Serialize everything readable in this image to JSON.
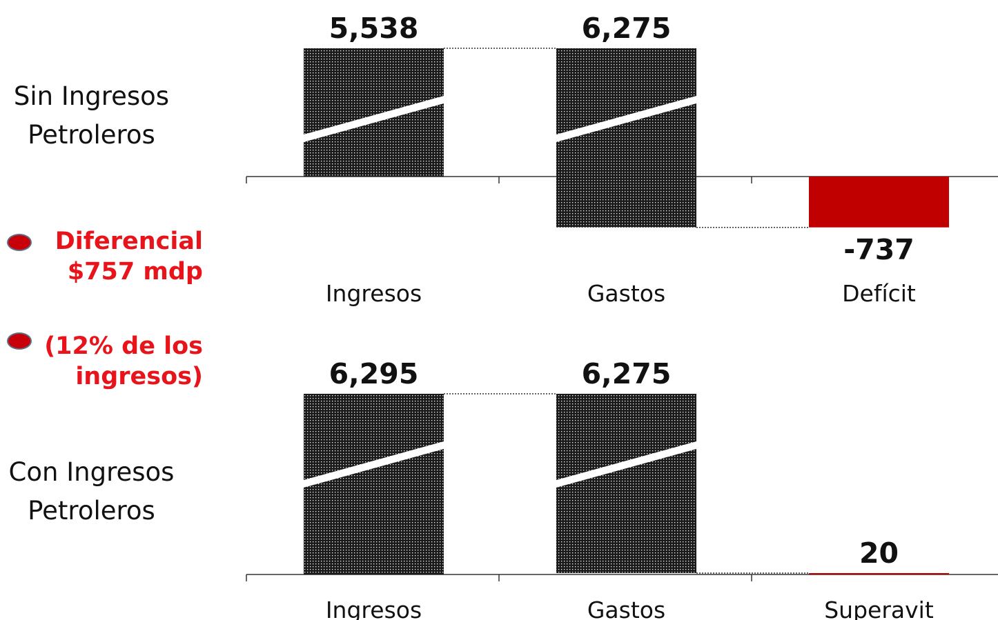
{
  "side": {
    "top_label": [
      "Sin Ingresos",
      "Petroleros"
    ],
    "bottom_label": [
      "Con Ingresos",
      "Petroleros"
    ],
    "bullet1": [
      "Diferencial",
      "$757 mdp"
    ],
    "bullet2": [
      "(12% de los",
      "ingresos)"
    ]
  },
  "colors": {
    "bar": "#1b1b1b",
    "result": "#c00000",
    "text": "#111111",
    "highlight": "#e8141b"
  },
  "chart_data": [
    {
      "type": "bar",
      "title": "",
      "categories": [
        "Ingresos",
        "Gastos",
        "Deficit"
      ],
      "category_labels": [
        "Ingresos",
        "Gastos",
        "Defícit"
      ],
      "values": [
        5538,
        6275,
        -737
      ],
      "value_labels": [
        "5,538",
        "6,275",
        "-737"
      ],
      "axis_break": true
    },
    {
      "type": "bar",
      "title": "",
      "categories": [
        "Ingresos",
        "Gastos",
        "Superavit"
      ],
      "category_labels": [
        "Ingresos",
        "Gastos",
        "Superavit"
      ],
      "values": [
        6295,
        6275,
        20
      ],
      "value_labels": [
        "6,295",
        "6,275",
        "20"
      ],
      "axis_break": true
    }
  ]
}
